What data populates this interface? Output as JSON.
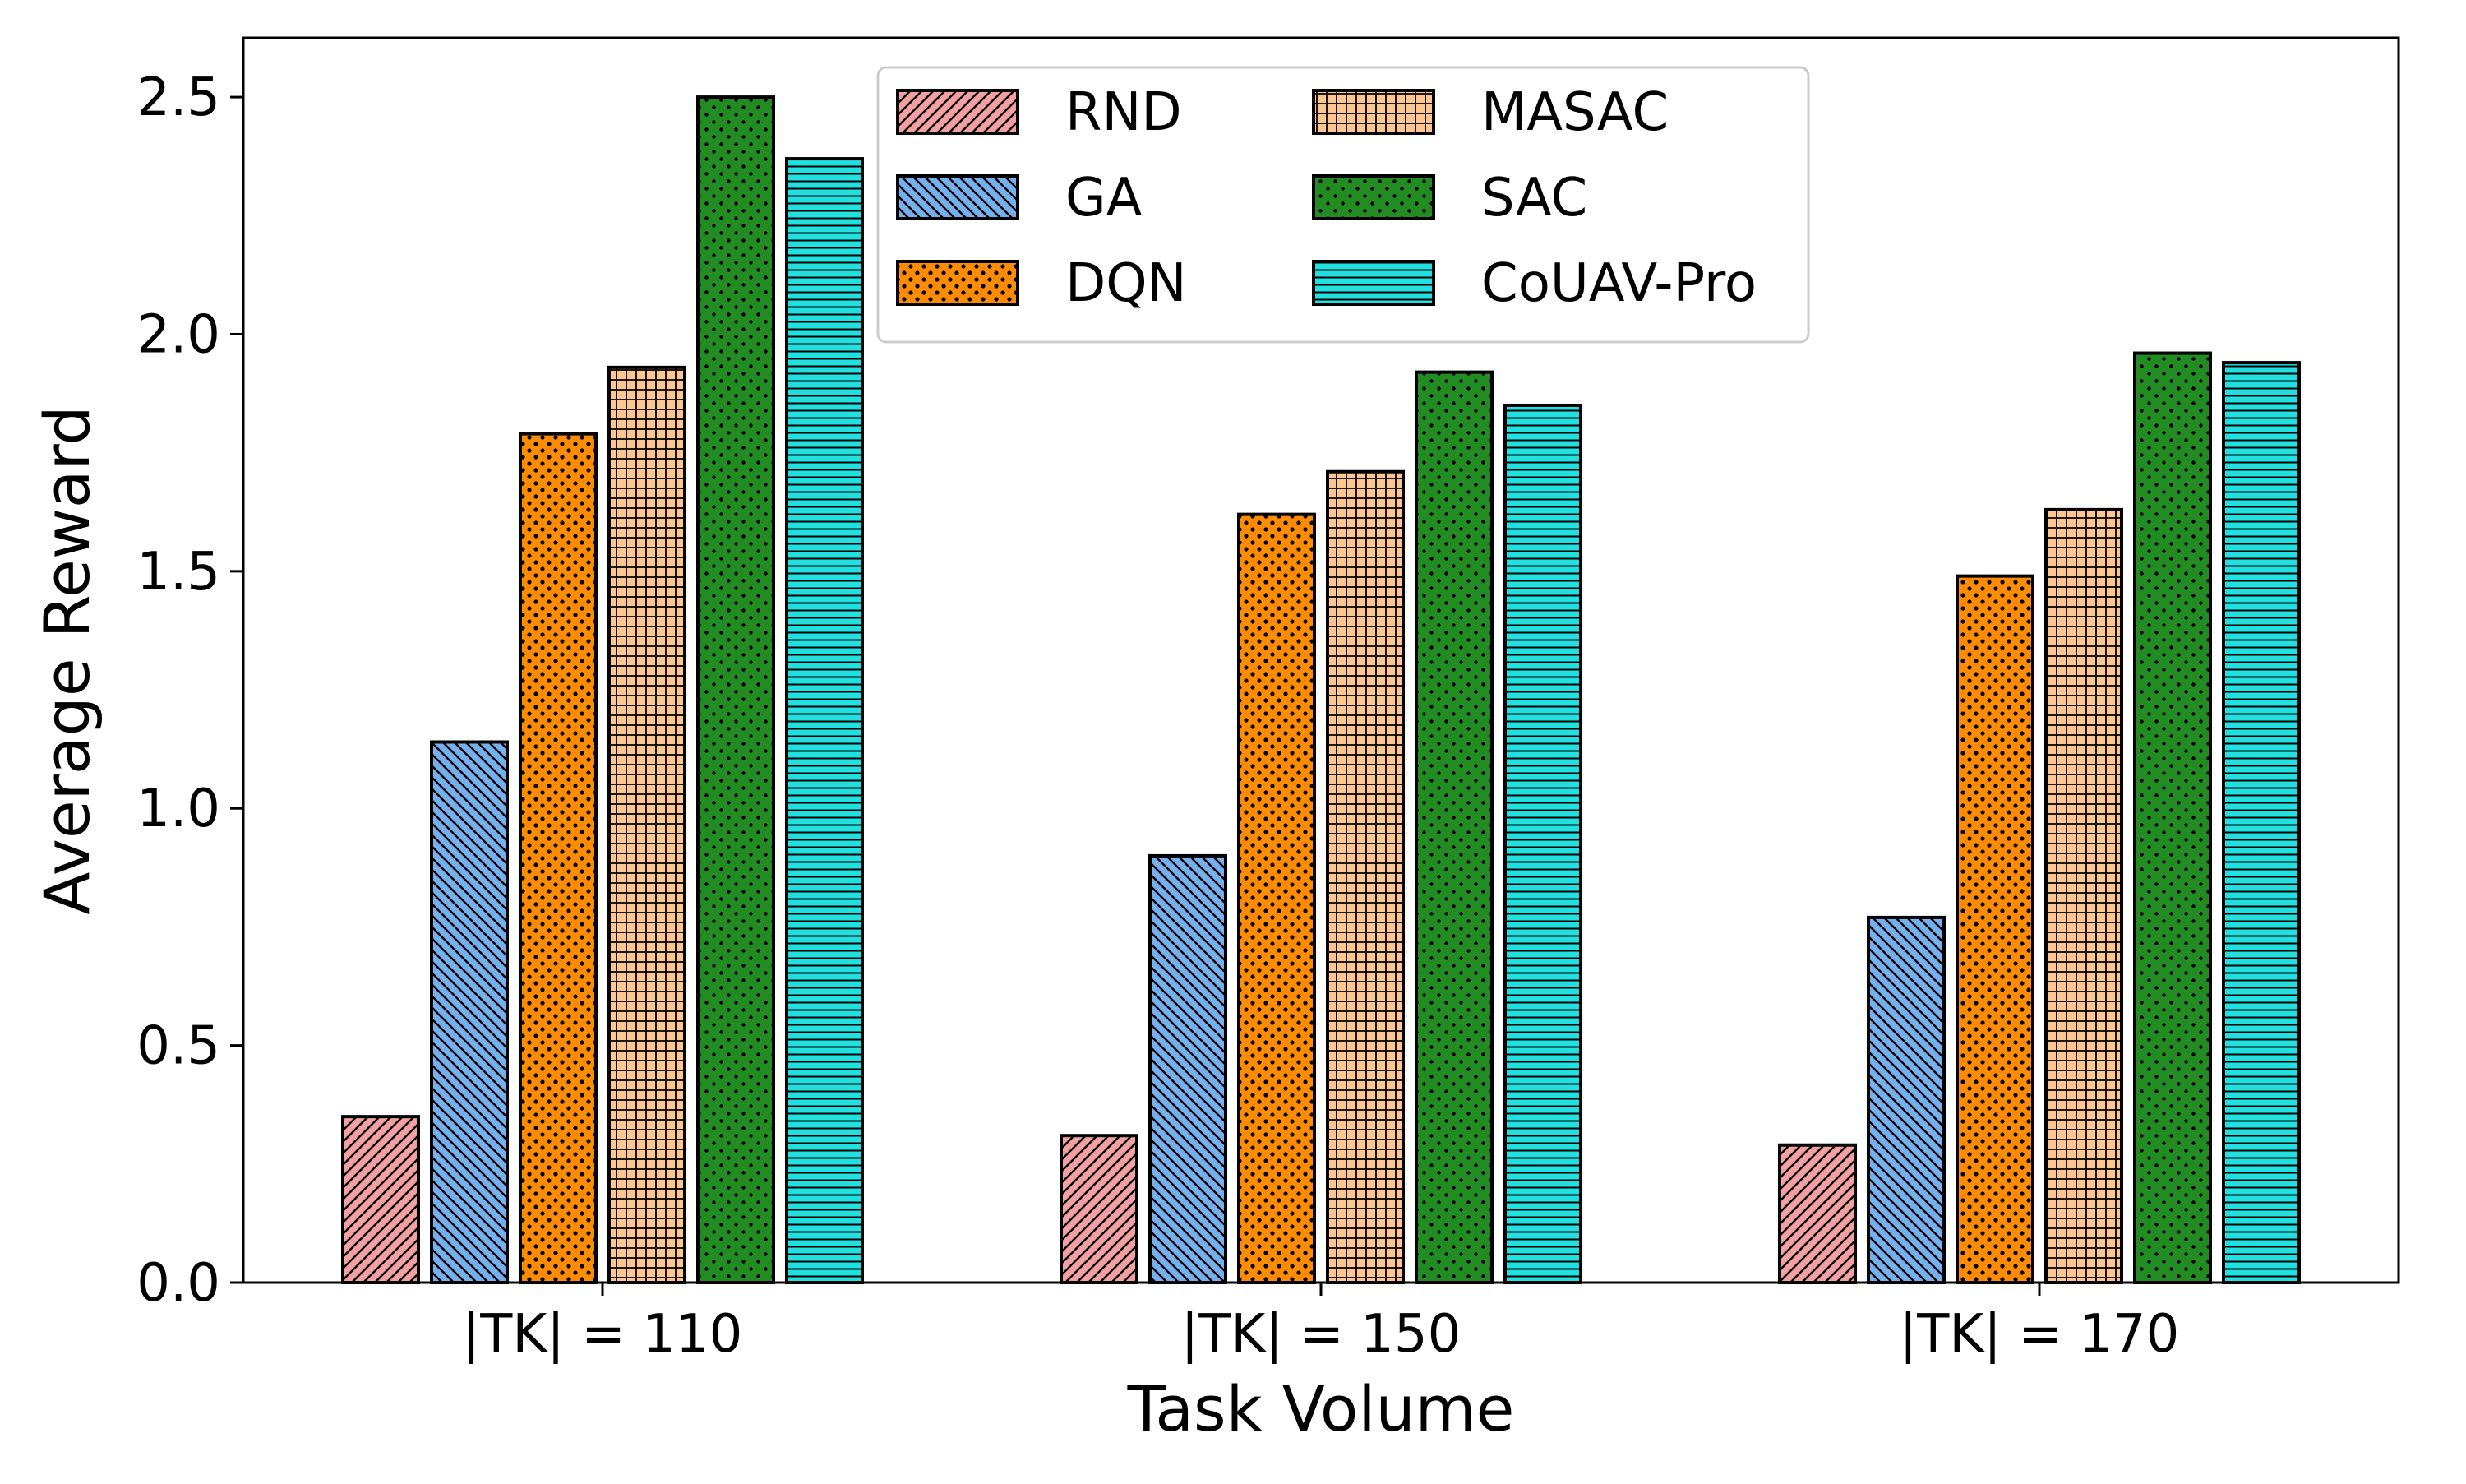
{
  "chart_data": {
    "type": "bar",
    "title": "",
    "xlabel": "Task Volume",
    "ylabel": "Average Reward",
    "categories": [
      "|TK| = 110",
      "|TK| = 150",
      "|TK| = 170"
    ],
    "ylim": [
      0,
      2.625
    ],
    "yticks": [
      0.0,
      0.5,
      1.0,
      1.5,
      2.0,
      2.5
    ],
    "ytick_labels": [
      "0.0",
      "0.5",
      "1.0",
      "1.5",
      "2.0",
      "2.5"
    ],
    "grid": false,
    "legend": {
      "placement": "top-center",
      "columns": 2
    },
    "series": [
      {
        "name": "RND",
        "values": [
          0.35,
          0.31,
          0.29
        ],
        "color": "#f4a0a0",
        "hatch": "diagonal-right"
      },
      {
        "name": "GA",
        "values": [
          1.14,
          0.9,
          0.77
        ],
        "color": "#75b0ee",
        "hatch": "diagonal-left"
      },
      {
        "name": "DQN",
        "values": [
          1.79,
          1.62,
          1.49
        ],
        "color": "#ff8c00",
        "hatch": "dots"
      },
      {
        "name": "MASAC",
        "values": [
          1.93,
          1.71,
          1.63
        ],
        "color": "#fcc690",
        "hatch": "grid"
      },
      {
        "name": "SAC",
        "values": [
          2.5,
          1.92,
          1.96
        ],
        "color": "#228b22",
        "hatch": "dots-fine"
      },
      {
        "name": "CoUAV-Pro",
        "values": [
          2.37,
          1.85,
          1.94
        ],
        "color": "#22e0e0",
        "hatch": "horizontal"
      }
    ]
  }
}
